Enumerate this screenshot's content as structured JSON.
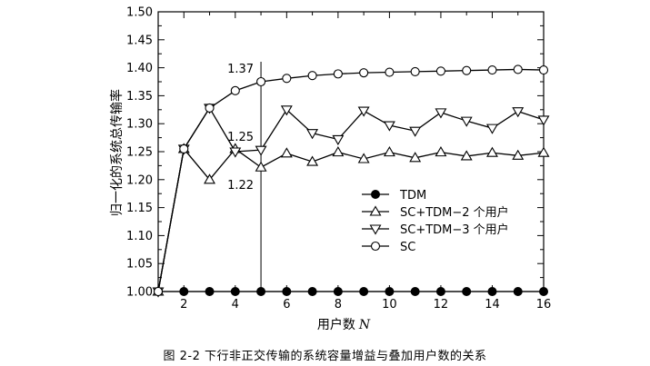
{
  "caption": "图 2-2   下行非正交传输的系统容量增益与叠加用户数的关系",
  "chart_data": {
    "type": "line",
    "xlabel_text": "用户数",
    "xlabel_symbol": "N",
    "ylabel": "归一化的系统总传输率",
    "xlim": [
      1,
      16
    ],
    "ylim": [
      1.0,
      1.5
    ],
    "xticks": [
      2,
      4,
      6,
      8,
      10,
      12,
      14,
      16
    ],
    "yticks": [
      "1.00",
      "1.05",
      "1.10",
      "1.15",
      "1.20",
      "1.25",
      "1.30",
      "1.35",
      "1.40",
      "1.45",
      "1.50"
    ],
    "grid": false,
    "legend_position": "lower-right",
    "series": [
      {
        "name": "TDM",
        "marker": "filled-circle",
        "x": [
          1,
          2,
          3,
          4,
          5,
          6,
          7,
          8,
          9,
          10,
          11,
          12,
          13,
          14,
          15,
          16
        ],
        "y": [
          1.0,
          1.0,
          1.0,
          1.0,
          1.0,
          1.0,
          1.0,
          1.0,
          1.0,
          1.0,
          1.0,
          1.0,
          1.0,
          1.0,
          1.0,
          1.0
        ]
      },
      {
        "name": "SC+TDM−2 个用户",
        "marker": "triangle-up",
        "x": [
          1,
          2,
          3,
          4,
          5,
          6,
          7,
          8,
          9,
          10,
          11,
          12,
          13,
          14,
          15,
          16
        ],
        "y": [
          1.0,
          1.255,
          1.2,
          1.255,
          1.222,
          1.247,
          1.232,
          1.249,
          1.237,
          1.249,
          1.239,
          1.249,
          1.242,
          1.248,
          1.243,
          1.248
        ]
      },
      {
        "name": "SC+TDM−3 个用户",
        "marker": "triangle-down",
        "x": [
          1,
          2,
          3,
          4,
          5,
          6,
          7,
          8,
          9,
          10,
          11,
          12,
          13,
          14,
          15,
          16
        ],
        "y": [
          1.0,
          1.255,
          1.328,
          1.25,
          1.253,
          1.325,
          1.283,
          1.272,
          1.323,
          1.297,
          1.287,
          1.32,
          1.305,
          1.292,
          1.322,
          1.307
        ]
      },
      {
        "name": "SC",
        "marker": "open-circle",
        "x": [
          1,
          2,
          3,
          4,
          5,
          6,
          7,
          8,
          9,
          10,
          11,
          12,
          13,
          14,
          15,
          16
        ],
        "y": [
          1.0,
          1.255,
          1.328,
          1.359,
          1.375,
          1.381,
          1.386,
          1.389,
          1.391,
          1.392,
          1.393,
          1.394,
          1.395,
          1.396,
          1.397,
          1.396
        ]
      }
    ],
    "vline_x": 5,
    "annotations": [
      {
        "text": "1.37",
        "x": 5,
        "y": 1.375,
        "anchor": "upper-left"
      },
      {
        "text": "1.25",
        "x": 5,
        "y": 1.253,
        "anchor": "upper-left"
      },
      {
        "text": "1.22",
        "x": 5,
        "y": 1.222,
        "anchor": "lower-left"
      }
    ]
  }
}
